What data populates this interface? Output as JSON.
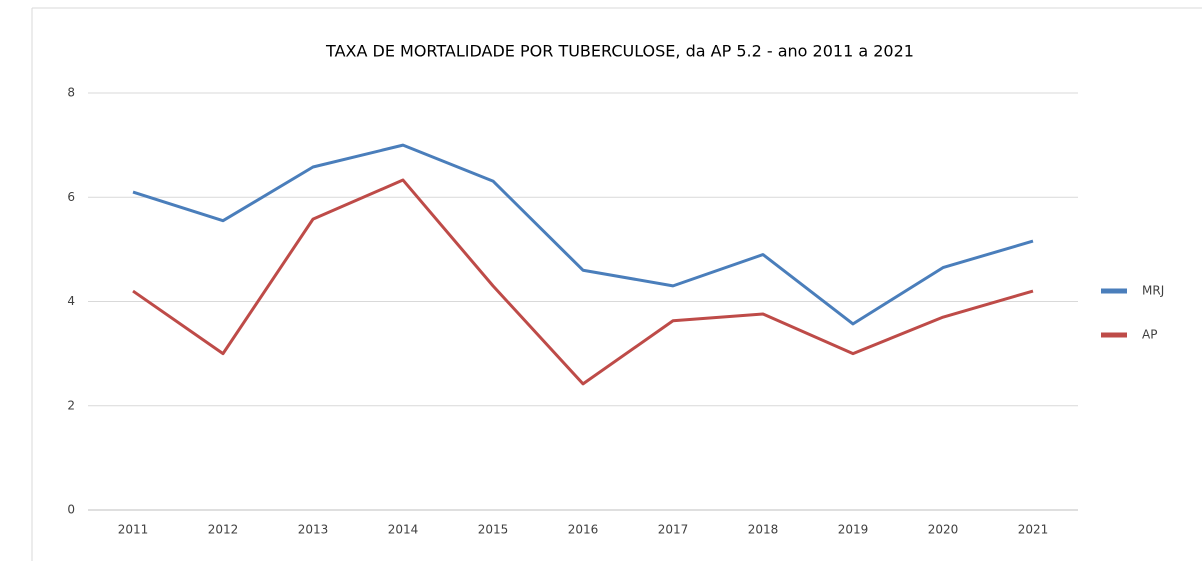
{
  "chart_data": {
    "type": "line",
    "title": "TAXA DE MORTALIDADE POR TUBERCULOSE, da AP 5.2 - ano 2011 a 2021",
    "categories": [
      "2011",
      "2012",
      "2013",
      "2014",
      "2015",
      "2016",
      "2017",
      "2018",
      "2019",
      "2020",
      "2021"
    ],
    "series": [
      {
        "name": "MRJ",
        "color": "#4a7ebb",
        "values": [
          6.1,
          5.55,
          6.58,
          7.0,
          6.31,
          4.6,
          4.3,
          4.9,
          3.57,
          4.65,
          5.16
        ]
      },
      {
        "name": "AP",
        "color": "#be4b48",
        "values": [
          4.2,
          3.0,
          5.58,
          6.33,
          4.3,
          2.42,
          3.63,
          3.76,
          3.0,
          3.7,
          4.2
        ]
      }
    ],
    "ylim": [
      0,
      8
    ],
    "yticks": [
      0,
      2,
      4,
      6,
      8
    ],
    "grid": true,
    "legend": "right"
  }
}
